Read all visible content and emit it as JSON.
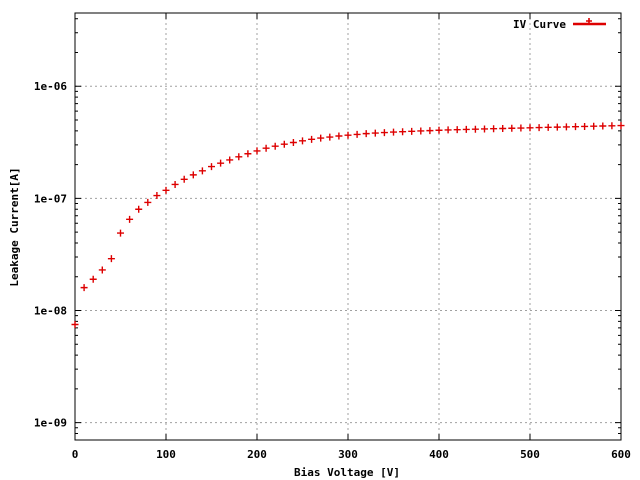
{
  "chart_data": {
    "type": "scatter",
    "title": "",
    "xlabel": "Bias Voltage [V]",
    "ylabel": "Leakage Current[A]",
    "xlim": [
      0,
      600
    ],
    "ylim": [
      7e-10,
      4.5e-06
    ],
    "yscale": "log",
    "grid": true,
    "legend_position": "top-right",
    "x_ticks": [
      "0",
      "100",
      "200",
      "300",
      "400",
      "500",
      "600"
    ],
    "y_ticks": [
      "1e-06",
      "1e-07",
      "1e-08",
      "1e-09"
    ],
    "series": [
      {
        "name": "IV Curve",
        "color": "#dd0000",
        "marker": "plus",
        "x": [
          0,
          10,
          20,
          30,
          40,
          50,
          60,
          70,
          80,
          90,
          100,
          110,
          120,
          130,
          140,
          150,
          160,
          170,
          180,
          190,
          200,
          210,
          220,
          230,
          240,
          250,
          260,
          270,
          280,
          290,
          300,
          310,
          320,
          330,
          340,
          350,
          360,
          370,
          380,
          390,
          400,
          410,
          420,
          430,
          440,
          450,
          460,
          470,
          480,
          490,
          500,
          510,
          520,
          530,
          540,
          550,
          560,
          570,
          580,
          590,
          600
        ],
        "y": [
          7.5e-09,
          1.6e-08,
          1.9e-08,
          2.3e-08,
          2.9e-08,
          4.9e-08,
          6.5e-08,
          8e-08,
          9.2e-08,
          1.06e-07,
          1.18e-07,
          1.33e-07,
          1.48e-07,
          1.62e-07,
          1.76e-07,
          1.92e-07,
          2.06e-07,
          2.2e-07,
          2.35e-07,
          2.5e-07,
          2.65e-07,
          2.8e-07,
          2.92e-07,
          3.04e-07,
          3.15e-07,
          3.26e-07,
          3.36e-07,
          3.45e-07,
          3.52e-07,
          3.6e-07,
          3.66e-07,
          3.72e-07,
          3.78e-07,
          3.82e-07,
          3.86e-07,
          3.9e-07,
          3.93e-07,
          3.96e-07,
          3.99e-07,
          4.02e-07,
          4.05e-07,
          4.08e-07,
          4.1e-07,
          4.12e-07,
          4.14e-07,
          4.16e-07,
          4.18e-07,
          4.2e-07,
          4.22e-07,
          4.24e-07,
          4.26e-07,
          4.28e-07,
          4.3e-07,
          4.32e-07,
          4.34e-07,
          4.36e-07,
          4.38e-07,
          4.4e-07,
          4.42e-07,
          4.44e-07,
          4.46e-07
        ]
      }
    ]
  }
}
